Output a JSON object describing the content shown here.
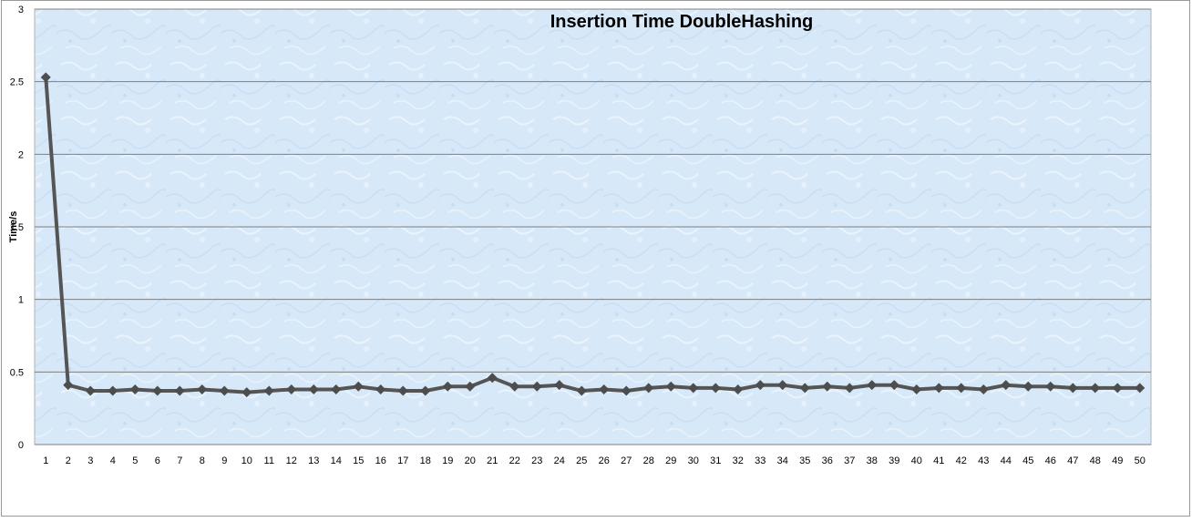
{
  "chart_data": {
    "type": "line",
    "title": "Insertion Time DoubleHashing",
    "xlabel": "",
    "ylabel": "Time/s",
    "ylim": [
      0,
      3
    ],
    "yticks": [
      "0",
      "0.5",
      "1",
      "1.5",
      "2",
      "2.5",
      "3"
    ],
    "grid": true,
    "legend": "none",
    "categories": [
      "1",
      "2",
      "3",
      "4",
      "5",
      "6",
      "7",
      "8",
      "9",
      "10",
      "11",
      "12",
      "13",
      "14",
      "15",
      "16",
      "17",
      "18",
      "19",
      "20",
      "21",
      "22",
      "23",
      "24",
      "25",
      "26",
      "27",
      "28",
      "29",
      "30",
      "31",
      "32",
      "33",
      "34",
      "35",
      "36",
      "37",
      "38",
      "39",
      "40",
      "41",
      "42",
      "43",
      "44",
      "45",
      "46",
      "47",
      "48",
      "49",
      "50"
    ],
    "series": [
      {
        "values": [
          2.53,
          0.41,
          0.37,
          0.37,
          0.38,
          0.37,
          0.37,
          0.38,
          0.37,
          0.36,
          0.37,
          0.38,
          0.38,
          0.38,
          0.4,
          0.38,
          0.37,
          0.37,
          0.4,
          0.4,
          0.46,
          0.4,
          0.4,
          0.41,
          0.37,
          0.38,
          0.37,
          0.39,
          0.4,
          0.39,
          0.39,
          0.38,
          0.41,
          0.41,
          0.39,
          0.4,
          0.39,
          0.41,
          0.41,
          0.38,
          0.39,
          0.39,
          0.38,
          0.41,
          0.4,
          0.4,
          0.39,
          0.39,
          0.39,
          0.39
        ]
      }
    ],
    "colors": {
      "line": "#555555",
      "marker": "#4d4d4d",
      "plot_bg": "#d9e9f8",
      "grid": "#7f7f7f"
    }
  }
}
